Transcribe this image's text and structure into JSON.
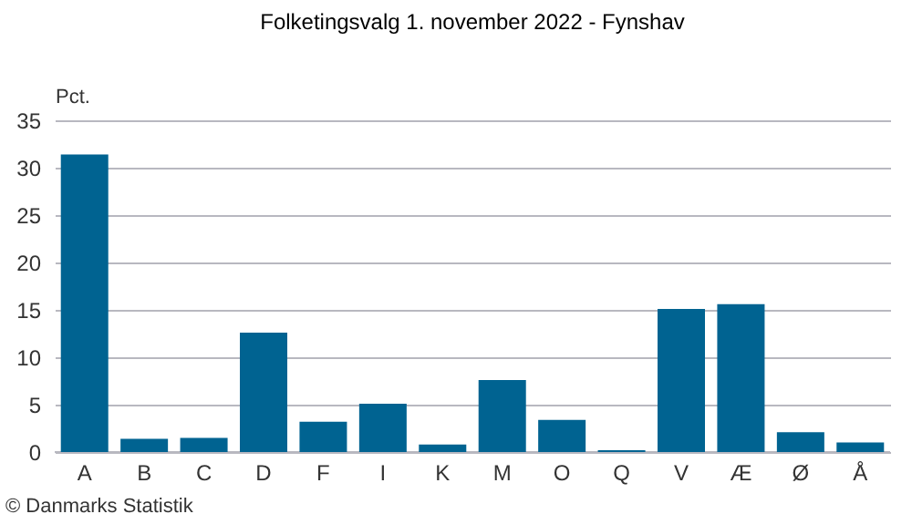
{
  "chart_data": {
    "type": "bar",
    "title": "Folketingsvalg 1. november 2022 - Fynshav",
    "ylabel": "Pct.",
    "categories": [
      "A",
      "B",
      "C",
      "D",
      "F",
      "I",
      "K",
      "M",
      "O",
      "Q",
      "V",
      "Æ",
      "Ø",
      "Å"
    ],
    "values": [
      31.4,
      1.4,
      1.5,
      12.6,
      3.2,
      5.1,
      0.8,
      7.6,
      3.4,
      0.2,
      15.1,
      15.6,
      2.1,
      1.0
    ],
    "color": "#006391",
    "ylim": [
      0,
      35
    ],
    "yticks": [
      0,
      5,
      10,
      15,
      20,
      25,
      30,
      35
    ],
    "grid": "y",
    "annotations": [
      "© Danmarks Statistik"
    ]
  }
}
